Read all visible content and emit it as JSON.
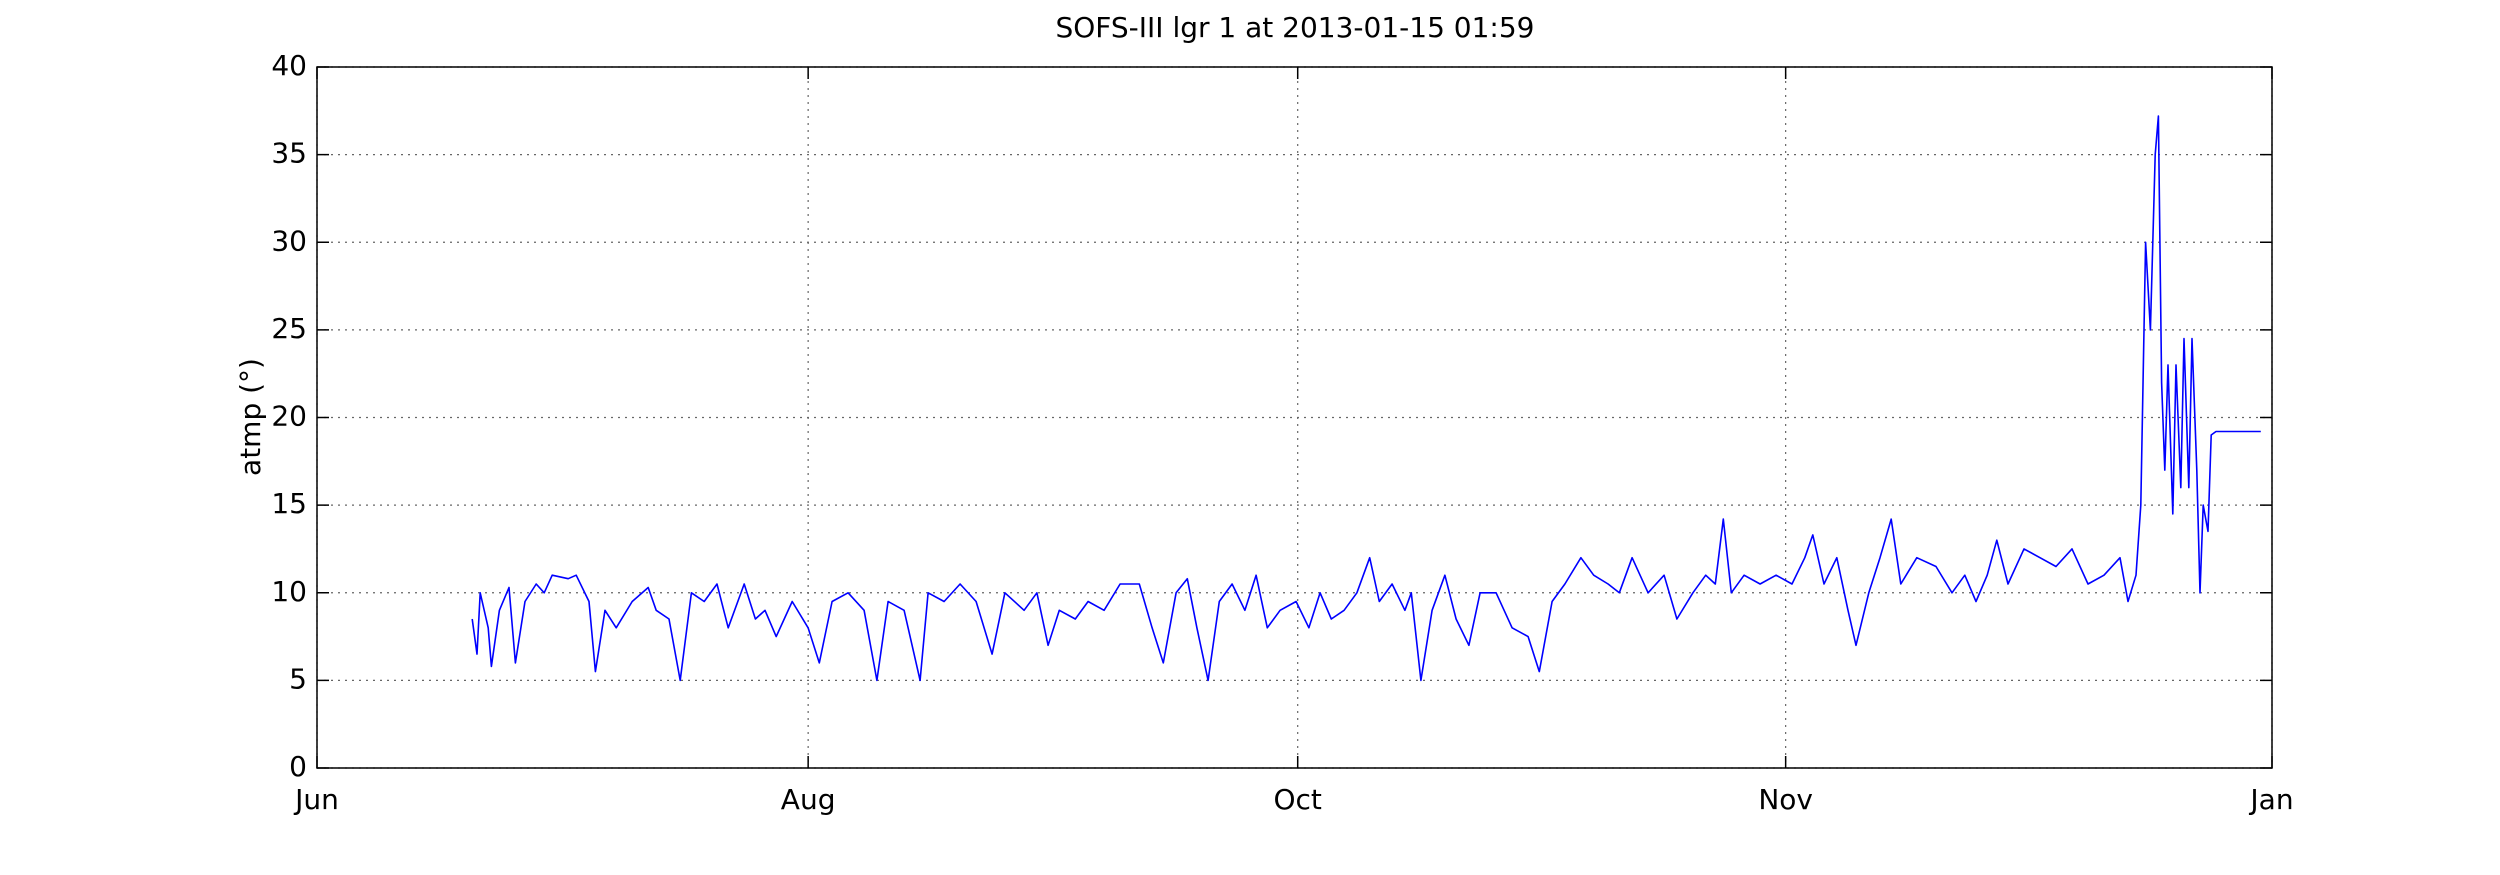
{
  "chart_data": {
    "type": "line",
    "title": "SOFS-III lgr 1 at 2013-01-15 01:59",
    "ylabel": "atmp (°)",
    "xlim": [
      0,
      1222
    ],
    "xticks": [
      {
        "value": 0,
        "label": "Jun"
      },
      {
        "value": 307,
        "label": "Aug"
      },
      {
        "value": 613,
        "label": "Oct"
      },
      {
        "value": 918,
        "label": "Nov"
      },
      {
        "value": 1222,
        "label": "Jan"
      }
    ],
    "ylim": [
      0,
      40
    ],
    "yticks": [
      0,
      5,
      10,
      15,
      20,
      25,
      30,
      35,
      40
    ],
    "grid": true,
    "series": [
      {
        "color": "#0000ff",
        "x": [
          97,
          100,
          102,
          107,
          109,
          114,
          120,
          124,
          130,
          137,
          142,
          147,
          157,
          162,
          170,
          174,
          180,
          187,
          197,
          207,
          212,
          220,
          227,
          234,
          242,
          250,
          257,
          267,
          274,
          280,
          287,
          297,
          307,
          314,
          322,
          332,
          342,
          350,
          357,
          367,
          377,
          382,
          392,
          402,
          412,
          422,
          430,
          442,
          450,
          457,
          464,
          474,
          482,
          492,
          502,
          514,
          522,
          529,
          537,
          544,
          550,
          557,
          564,
          572,
          580,
          587,
          594,
          602,
          612,
          620,
          627,
          634,
          642,
          650,
          658,
          664,
          672,
          680,
          684,
          690,
          697,
          705,
          712,
          720,
          727,
          737,
          747,
          757,
          764,
          772,
          780,
          790,
          798,
          807,
          814,
          822,
          832,
          842,
          850,
          860,
          868,
          874,
          879,
          884,
          892,
          902,
          912,
          922,
          930,
          935,
          942,
          950,
          957,
          962,
          970,
          977,
          984,
          990,
          1000,
          1012,
          1022,
          1030,
          1037,
          1044,
          1050,
          1057,
          1067,
          1077,
          1087,
          1097,
          1107,
          1117,
          1127,
          1132,
          1137,
          1140,
          1143,
          1146,
          1149,
          1151,
          1153,
          1155,
          1157,
          1160,
          1162,
          1165,
          1167,
          1170,
          1172,
          1175,
          1177,
          1179,
          1182,
          1184,
          1187,
          1215
        ],
        "values": [
          8.5,
          6.5,
          10,
          8,
          5.8,
          9,
          10.3,
          6,
          9.5,
          10.5,
          10,
          11,
          10.8,
          11,
          9.5,
          5.5,
          9,
          8,
          9.5,
          10.3,
          9,
          8.5,
          5,
          10,
          9.5,
          10.5,
          8,
          10.5,
          8.5,
          9,
          7.5,
          9.5,
          8,
          6,
          9.5,
          10,
          9,
          5,
          9.5,
          9,
          5,
          10,
          9.5,
          10.5,
          9.5,
          6.5,
          10,
          9,
          10,
          7,
          9,
          8.5,
          9.5,
          9,
          10.5,
          10.5,
          8,
          6,
          10,
          10.8,
          8,
          5,
          9.5,
          10.5,
          9,
          11,
          8,
          9,
          9.5,
          8,
          10,
          8.5,
          9,
          10,
          12,
          9.5,
          10.5,
          9,
          10,
          5,
          9,
          11,
          8.5,
          7,
          10,
          10,
          8,
          7.5,
          5.5,
          9.5,
          10.5,
          12,
          11,
          10.5,
          10,
          12,
          10,
          11,
          8.5,
          10,
          11,
          10.5,
          14.2,
          10,
          11,
          10.5,
          11,
          10.5,
          12,
          13.3,
          10.5,
          12,
          9,
          7,
          10,
          12,
          14.2,
          10.5,
          12,
          11.5,
          10,
          11,
          9.5,
          11,
          13,
          10.5,
          12.5,
          12,
          11.5,
          12.5,
          10.5,
          11,
          12,
          9.5,
          11,
          15,
          30,
          25,
          35,
          37.2,
          22,
          17,
          23,
          14.5,
          23,
          16,
          24.5,
          16,
          24.5,
          17,
          10,
          15,
          13.5,
          19,
          19.2,
          19.2
        ]
      }
    ]
  }
}
